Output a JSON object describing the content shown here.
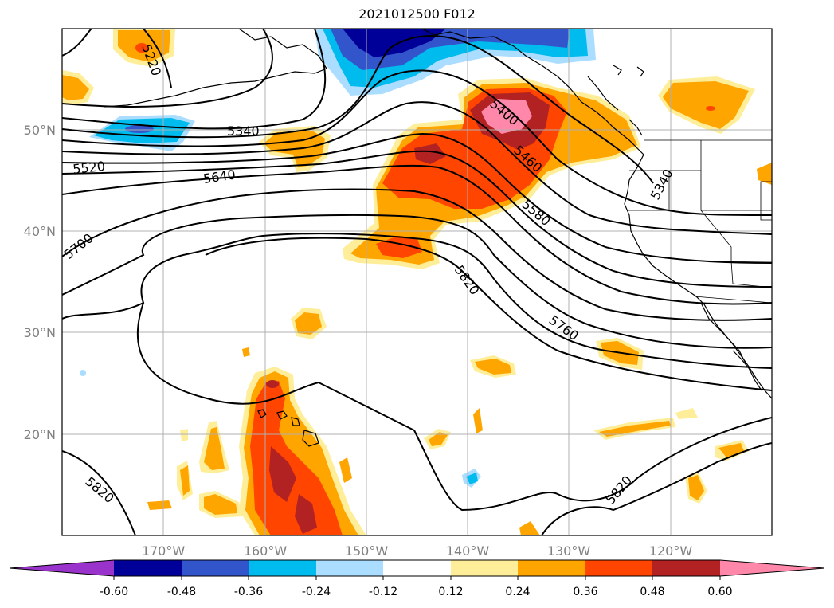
{
  "title": "2021012500 F012",
  "lat_labels": [
    "50°N",
    "40°N",
    "30°N",
    "20°N"
  ],
  "lon_labels": [
    "170°W",
    "160°W",
    "150°W",
    "140°W",
    "130°W",
    "120°W"
  ],
  "contour_labels": [
    "5220",
    "5340",
    "5400",
    "5460",
    "5520",
    "5640",
    "5580",
    "5700",
    "5820",
    "5760",
    "5340",
    "5820",
    "5820"
  ],
  "colorbar": {
    "colors": [
      "#9933cc",
      "#000099",
      "#3355cc",
      "#00bbee",
      "#aaddff",
      "#ffffff",
      "#ffee99",
      "#ffa500",
      "#ff4500",
      "#b22222",
      "#ff88aa"
    ],
    "tick_labels": [
      "-0.60",
      "-0.48",
      "-0.36",
      "-0.24",
      "-0.12",
      "0.12",
      "0.24",
      "0.36",
      "0.48",
      "0.60"
    ]
  }
}
